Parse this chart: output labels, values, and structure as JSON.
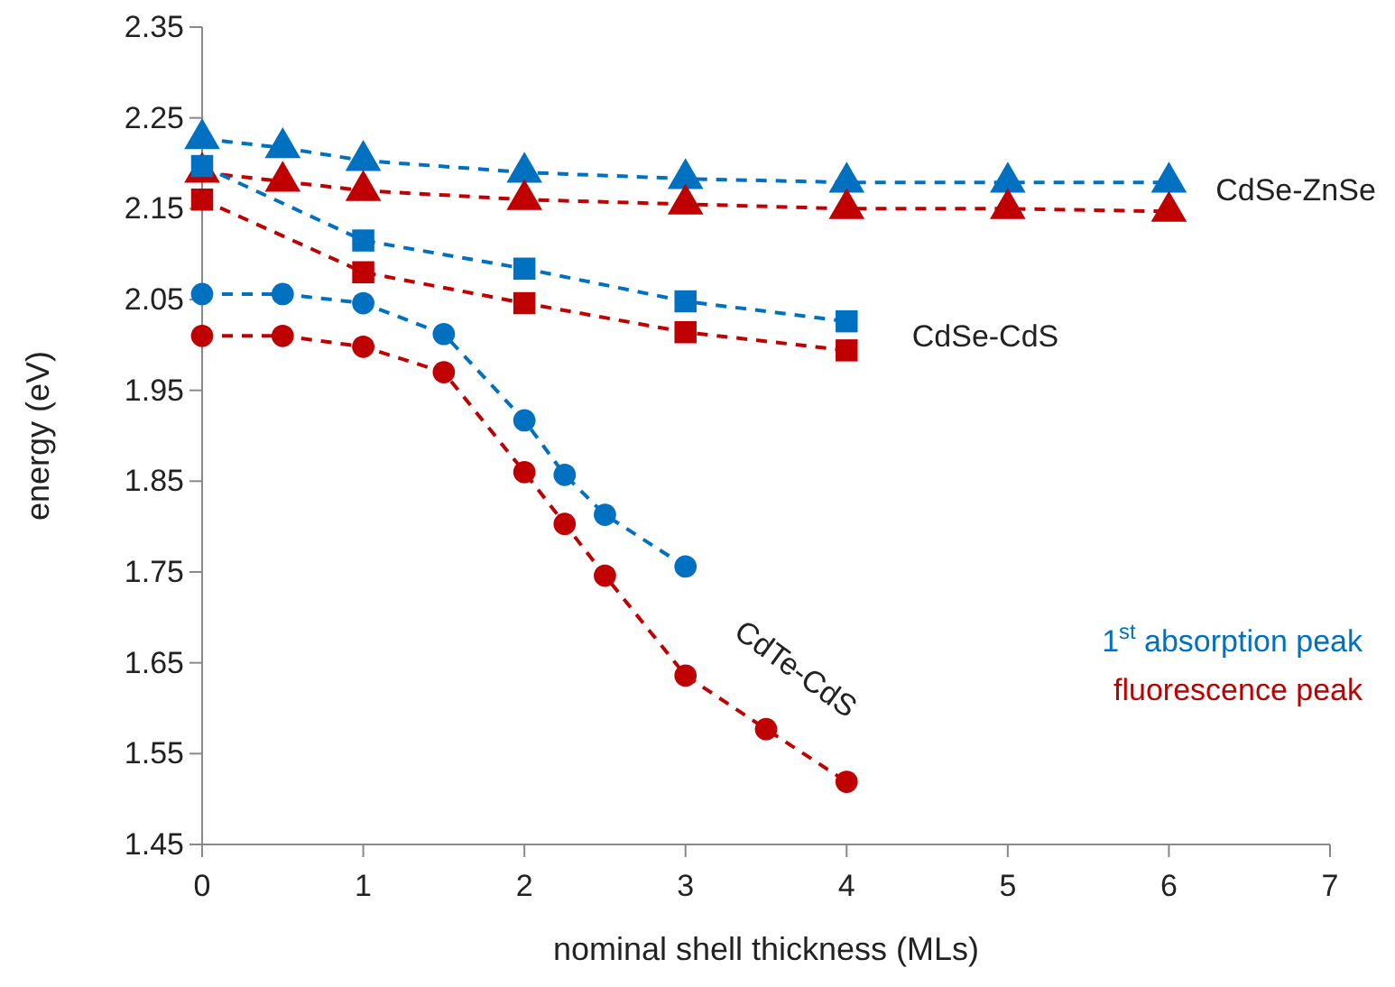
{
  "chart_data": {
    "type": "line",
    "xlabel": "nominal shell thickness (MLs)",
    "ylabel": "energy (eV)",
    "xlim": [
      0,
      7
    ],
    "xticks": [
      0,
      1,
      2,
      3,
      4,
      5,
      6,
      7
    ],
    "ylim": [
      1.45,
      2.35
    ],
    "yticks": [
      {
        "value": 1.45,
        "label": "1.45"
      },
      {
        "value": 1.55,
        "label": "1.55"
      },
      {
        "value": 1.65,
        "label": "1.65"
      },
      {
        "value": 1.75,
        "label": "1.75"
      },
      {
        "value": 1.85,
        "label": "1.85"
      },
      {
        "value": 1.95,
        "label": "1.95"
      },
      {
        "value": 2.05,
        "label": "2.05"
      },
      {
        "value": 2.15,
        "label": "2.15"
      },
      {
        "value": 2.25,
        "label": "2.25"
      },
      {
        "value": 2.35,
        "label": "2.35"
      }
    ],
    "grid": false,
    "legend": "bottom right",
    "line_style": "dashed",
    "series": [
      {
        "name": "1$^{st}$ absorption peak",
        "color": "#0070c0",
        "marker": "triangle",
        "x": [
          0,
          0.5,
          1,
          2,
          3,
          4,
          5,
          6
        ],
        "values": [
          2.227,
          2.217,
          2.203,
          2.19,
          2.183,
          2.179,
          2.179,
          2.179
        ]
      },
      {
        "name": "fluorescence peak",
        "color": "#c00000",
        "marker": "triangle",
        "x": [
          0,
          0.5,
          1,
          2,
          3,
          4,
          5,
          6
        ],
        "values": [
          2.19,
          2.18,
          2.17,
          2.16,
          2.155,
          2.15,
          2.15,
          2.147
        ]
      },
      {
        "color": "#0070c0",
        "marker": "square",
        "x": [
          0,
          1,
          2,
          3,
          4
        ],
        "values": [
          2.197,
          2.115,
          2.084,
          2.048,
          2.026
        ]
      },
      {
        "color": "#c00000",
        "marker": "square",
        "x": [
          0,
          1,
          2,
          3,
          4
        ],
        "values": [
          2.16,
          2.08,
          2.046,
          2.014,
          1.994
        ]
      },
      {
        "color": "#0070c0",
        "marker": "circle",
        "x": [
          0,
          0.5,
          1,
          1.5,
          2,
          2.25,
          2.5,
          3
        ],
        "values": [
          2.056,
          2.056,
          2.046,
          2.012,
          1.917,
          1.857,
          1.813,
          1.756
        ]
      },
      {
        "color": "#c00000",
        "marker": "circle",
        "x": [
          0,
          0.5,
          1,
          1.5,
          2,
          2.25,
          2.5,
          3,
          3.5,
          4
        ],
        "values": [
          2.01,
          2.01,
          1.998,
          1.97,
          1.86,
          1.803,
          1.746,
          1.636,
          1.577,
          1.519
        ]
      }
    ],
    "annotations": [
      "CdSe-ZnSe",
      "CdSe-CdS",
      "CdTe-CdS"
    ]
  }
}
